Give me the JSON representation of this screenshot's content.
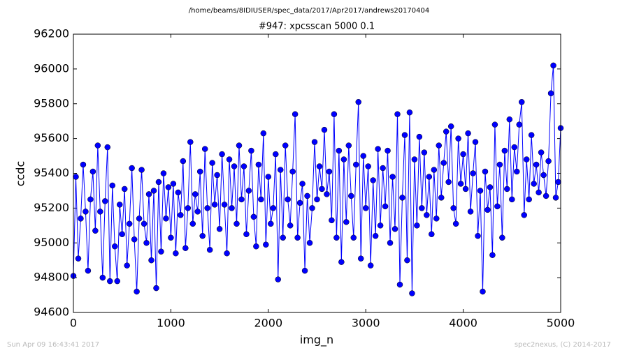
{
  "chart_data": {
    "type": "line",
    "suptitle": "/home/beams/8IDIUSER/spec_data/2017/Apr2017/andrews20170404",
    "title": "#947: xpcsscan 5000 0.1",
    "xlabel": "img_n",
    "ylabel": "ccdc",
    "footer_left": "Sun Apr 09 16:43:41 2017",
    "footer_right": "spec2nexus, (C) 2014-2017",
    "xlim": [
      0,
      5000
    ],
    "ylim": [
      94600,
      96200
    ],
    "xticks": [
      0,
      1000,
      2000,
      3000,
      4000,
      5000
    ],
    "yticks": [
      94600,
      94800,
      95000,
      95200,
      95400,
      95600,
      95800,
      96000,
      96200
    ],
    "x": [
      0,
      25,
      50,
      75,
      100,
      125,
      150,
      175,
      200,
      225,
      250,
      275,
      300,
      325,
      350,
      375,
      400,
      425,
      450,
      475,
      500,
      525,
      550,
      575,
      600,
      625,
      650,
      675,
      700,
      725,
      750,
      775,
      800,
      825,
      850,
      875,
      900,
      925,
      950,
      975,
      1000,
      1025,
      1050,
      1075,
      1100,
      1125,
      1150,
      1175,
      1200,
      1225,
      1250,
      1275,
      1300,
      1325,
      1350,
      1375,
      1400,
      1425,
      1450,
      1475,
      1500,
      1525,
      1550,
      1575,
      1600,
      1625,
      1650,
      1675,
      1700,
      1725,
      1750,
      1775,
      1800,
      1825,
      1850,
      1875,
      1900,
      1925,
      1950,
      1975,
      2000,
      2025,
      2050,
      2075,
      2100,
      2125,
      2150,
      2175,
      2200,
      2225,
      2250,
      2275,
      2300,
      2325,
      2350,
      2375,
      2400,
      2425,
      2450,
      2475,
      2500,
      2525,
      2550,
      2575,
      2600,
      2625,
      2650,
      2675,
      2700,
      2725,
      2750,
      2775,
      2800,
      2825,
      2850,
      2875,
      2900,
      2925,
      2950,
      2975,
      3000,
      3025,
      3050,
      3075,
      3100,
      3125,
      3150,
      3175,
      3200,
      3225,
      3250,
      3275,
      3300,
      3325,
      3350,
      3375,
      3400,
      3425,
      3450,
      3475,
      3500,
      3525,
      3550,
      3575,
      3600,
      3625,
      3650,
      3675,
      3700,
      3725,
      3750,
      3775,
      3800,
      3825,
      3850,
      3875,
      3900,
      3925,
      3950,
      3975,
      4000,
      4025,
      4050,
      4075,
      4100,
      4125,
      4150,
      4175,
      4200,
      4225,
      4250,
      4275,
      4300,
      4325,
      4350,
      4375,
      4400,
      4425,
      4450,
      4475,
      4500,
      4525,
      4550,
      4575,
      4600,
      4625,
      4650,
      4675,
      4700,
      4725,
      4750,
      4775,
      4800,
      4825,
      4850,
      4875,
      4900,
      4925,
      4950,
      4975,
      5000
    ],
    "series": [
      {
        "name": "ccdc",
        "color": "#0000ff",
        "values": [
          94810,
          95380,
          94910,
          95140,
          95450,
          95180,
          94840,
          95250,
          95410,
          95070,
          95560,
          95180,
          94800,
          95240,
          95550,
          94780,
          95330,
          94980,
          94780,
          95220,
          95050,
          95310,
          94870,
          95110,
          95430,
          95020,
          94720,
          95140,
          95420,
          95110,
          95000,
          95280,
          94900,
          95300,
          94740,
          95350,
          94950,
          95400,
          95140,
          95320,
          95030,
          95340,
          94940,
          95290,
          95160,
          95470,
          94970,
          95200,
          95580,
          95110,
          95280,
          95180,
          95410,
          95040,
          95540,
          95200,
          94960,
          95460,
          95220,
          95390,
          95080,
          95510,
          95220,
          94940,
          95480,
          95200,
          95440,
          95110,
          95560,
          95250,
          95440,
          95050,
          95300,
          95530,
          95150,
          94980,
          95450,
          95250,
          95630,
          94990,
          95380,
          95110,
          95200,
          95510,
          94790,
          95420,
          95030,
          95560,
          95250,
          95100,
          95410,
          95740,
          95030,
          95230,
          95340,
          94840,
          95270,
          95000,
          95200,
          95580,
          95250,
          95440,
          95310,
          95650,
          95280,
          95410,
          95130,
          95740,
          95030,
          95530,
          94890,
          95480,
          95120,
          95560,
          95270,
          95030,
          95450,
          95810,
          94910,
          95500,
          95200,
          95440,
          94870,
          95360,
          95040,
          95540,
          95100,
          95430,
          95210,
          95530,
          95000,
          95380,
          95080,
          95740,
          94760,
          95260,
          95620,
          94900,
          95750,
          94710,
          95480,
          95100,
          95610,
          95200,
          95520,
          95160,
          95380,
          95050,
          95420,
          95140,
          95560,
          95260,
          95460,
          95640,
          95350,
          95670,
          95200,
          95110,
          95600,
          95340,
          95510,
          95310,
          95630,
          95180,
          95400,
          95580,
          95040,
          95300,
          94720,
          95410,
          95190,
          95320,
          94930,
          95680,
          95210,
          95450,
          95030,
          95530,
          95310,
          95710,
          95250,
          95550,
          95410,
          95680,
          95810,
          95160,
          95480,
          95250,
          95620,
          95340,
          95450,
          95290,
          95520,
          95390,
          95270,
          95470,
          95860,
          96020,
          95260,
          95350,
          95660
        ]
      }
    ]
  }
}
